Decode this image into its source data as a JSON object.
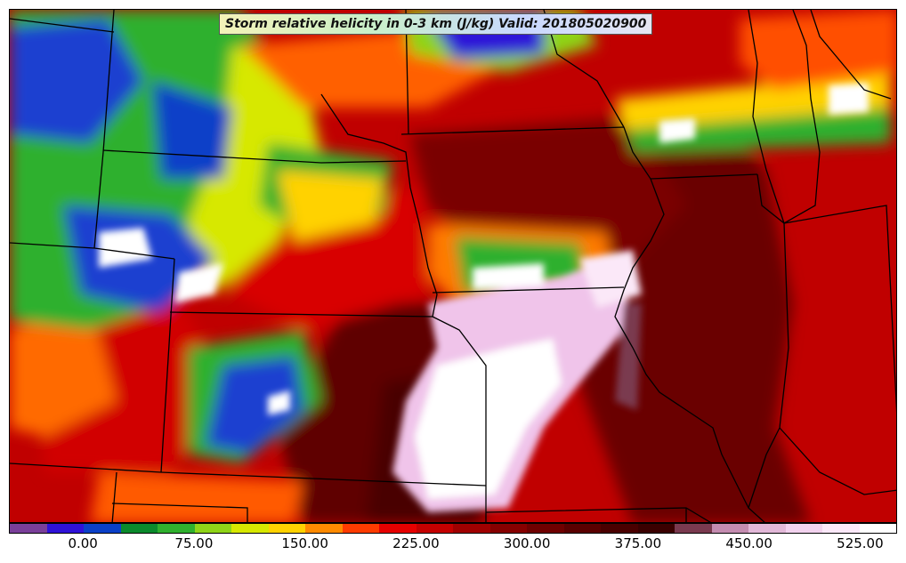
{
  "title": "Storm relative helicity in 0-3 km (J/kg) Valid: 201805020900",
  "colorbar": {
    "colors": [
      "#7a3f9a",
      "#2f12d8",
      "#0b40c8",
      "#0a8a2c",
      "#2fb02e",
      "#8fd418",
      "#d7e800",
      "#ffd200",
      "#ff8a00",
      "#ff3b00",
      "#e60000",
      "#c40000",
      "#a00000",
      "#860000",
      "#6f0000",
      "#5a0000",
      "#4a0000",
      "#3a0000",
      "#7a3a4f",
      "#c48cb0",
      "#e2b8d8",
      "#f2d2ee",
      "#fbe8f8",
      "#ffffff"
    ],
    "tick_labels": [
      "0.00",
      "75.00",
      "150.00",
      "225.00",
      "300.00",
      "375.00",
      "450.00",
      "525.00"
    ]
  },
  "map": {
    "background_color": "#c30000"
  }
}
